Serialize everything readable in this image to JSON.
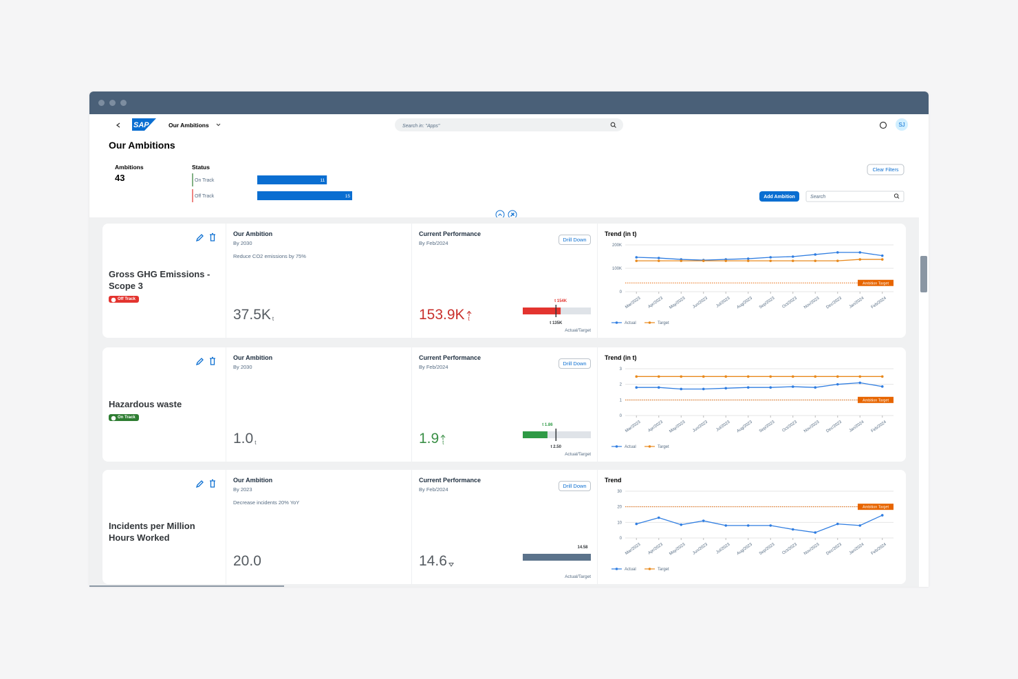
{
  "header": {
    "app_title": "Our Ambitions",
    "search_placeholder": "Search in: \"Apps\"",
    "avatar": "SJ"
  },
  "page_title": "Our Ambitions",
  "summary": {
    "ambitions_label": "Ambitions",
    "ambitions_count": 43,
    "status_label": "Status",
    "bar_color": "#0a6ed1",
    "status": [
      {
        "label": "On Track",
        "count": 11,
        "color": "#2e7d32"
      },
      {
        "label": "Off Track",
        "count": 15,
        "color": "#e3342f"
      }
    ]
  },
  "toolbar": {
    "clear_filters": "Clear Filters",
    "add_ambition": "Add Ambition",
    "search_placeholder": "Search"
  },
  "cards": [
    {
      "name": "Gross GHG Emissions - Scope 3",
      "status": {
        "label": "Off Track",
        "color": "#e3342f"
      },
      "ambition": {
        "label": "Our Ambition",
        "by": "By 2030",
        "description": "Reduce CO2 emissions by 75%",
        "value": "37.5K",
        "unit": "t"
      },
      "performance": {
        "label": "Current Performance",
        "by": "By Feb/2024",
        "value": "153.9K",
        "unit": "t",
        "color": "#c9302c",
        "trend_icon": "up",
        "drill_down": "Drill Down",
        "bullet": {
          "actual": 154000,
          "actual_label": "t 154K",
          "target": 135000,
          "target_label": "t 135K",
          "color": "#e3342f",
          "caption": "Actual/Target"
        }
      },
      "trend": {
        "type": "line",
        "title": "Trend (in t)",
        "categories": [
          "Mar/2023",
          "Apr/2023",
          "May/2023",
          "Jun/2023",
          "Jul/2023",
          "Aug/2023",
          "Sep/2023",
          "Oct/2023",
          "Nov/2023",
          "Dec/2023",
          "Jan/2024",
          "Feb/2024"
        ],
        "ylim": [
          0,
          200000
        ],
        "yticks": [
          {
            "value": 0,
            "label": "0"
          },
          {
            "value": 100000,
            "label": "100K"
          },
          {
            "value": 200000,
            "label": "200K"
          }
        ],
        "grid": true,
        "ambition_target": 37500,
        "ambition_target_label": "Ambition Target",
        "series": [
          {
            "name": "Actual",
            "color": "#2f7de1",
            "values": [
              147000,
              144000,
              138000,
              135000,
              138000,
              141000,
              147000,
              150000,
              159000,
              168000,
              168000,
              154000
            ]
          },
          {
            "name": "Target",
            "color": "#e8891c",
            "values": [
              132000,
              132000,
              132000,
              132000,
              132000,
              132000,
              132000,
              132000,
              132000,
              132000,
              138000,
              138000
            ]
          }
        ]
      }
    },
    {
      "name": "Hazardous waste",
      "status": {
        "label": "On Track",
        "color": "#2e7d32"
      },
      "ambition": {
        "label": "Our Ambition",
        "by": "By 2030",
        "value": "1.0",
        "unit": "t"
      },
      "performance": {
        "label": "Current Performance",
        "by": "By Feb/2024",
        "value": "1.9",
        "unit": "t",
        "color": "#3a8f46",
        "trend_icon": "up",
        "drill_down": "Drill Down",
        "bullet": {
          "actual": 1.86,
          "actual_label": "t 1.86",
          "target": 2.5,
          "target_label": "t 2.50",
          "color": "#2e9a45",
          "caption": "Actual/Target"
        }
      },
      "trend": {
        "type": "line",
        "title": "Trend (in t)",
        "categories": [
          "Mar/2023",
          "Apr/2023",
          "May/2023",
          "Jun/2023",
          "Jul/2023",
          "Aug/2023",
          "Sep/2023",
          "Oct/2023",
          "Nov/2023",
          "Dec/2023",
          "Jan/2024",
          "Feb/2024"
        ],
        "ylim": [
          0,
          3
        ],
        "yticks": [
          0,
          1,
          2,
          3
        ],
        "grid": true,
        "ambition_target": 1,
        "ambition_target_label": "Ambition Target",
        "series": [
          {
            "name": "Actual",
            "color": "#2f7de1",
            "values": [
              1.8,
              1.8,
              1.7,
              1.7,
              1.75,
              1.8,
              1.8,
              1.85,
              1.8,
              2.0,
              2.1,
              1.86
            ]
          },
          {
            "name": "Target",
            "color": "#e8891c",
            "values": [
              2.5,
              2.5,
              2.5,
              2.5,
              2.5,
              2.5,
              2.5,
              2.5,
              2.5,
              2.5,
              2.5,
              2.5
            ]
          }
        ]
      }
    },
    {
      "name": "Incidents per Million Hours Worked",
      "ambition": {
        "label": "Our Ambition",
        "by": "By 2023",
        "description": "Decrease incidents 20% YoY",
        "value": "20.0"
      },
      "performance": {
        "label": "Current Performance",
        "by": "By Feb/2024",
        "value": "14.6",
        "color": "#555b61",
        "trend_icon": "down",
        "drill_down": "Drill Down",
        "bullet": {
          "actual": 14.58,
          "actual_label": "14.58",
          "color": "#5b738b",
          "caption": "Actual/Target"
        }
      },
      "trend": {
        "type": "line",
        "title": "Trend",
        "categories": [
          "Mar/2023",
          "Apr/2023",
          "May/2023",
          "Jun/2023",
          "Jul/2023",
          "Aug/2023",
          "Sep/2023",
          "Oct/2023",
          "Nov/2023",
          "Dec/2023",
          "Jan/2024",
          "Feb/2024"
        ],
        "ylim": [
          0,
          30
        ],
        "yticks": [
          0,
          10,
          20,
          30
        ],
        "grid": true,
        "ambition_target": 20,
        "ambition_target_label": "Ambition Target",
        "series": [
          {
            "name": "Actual",
            "color": "#2f7de1",
            "values": [
              9,
              13,
              8.5,
              11,
              8,
              8,
              8,
              5.5,
              3.5,
              9,
              8,
              14.58
            ]
          },
          {
            "name": "Target",
            "color": "#e8891c",
            "values": [
              null,
              null,
              null,
              null,
              null,
              null,
              null,
              null,
              null,
              null,
              null,
              null
            ]
          }
        ]
      }
    }
  ]
}
